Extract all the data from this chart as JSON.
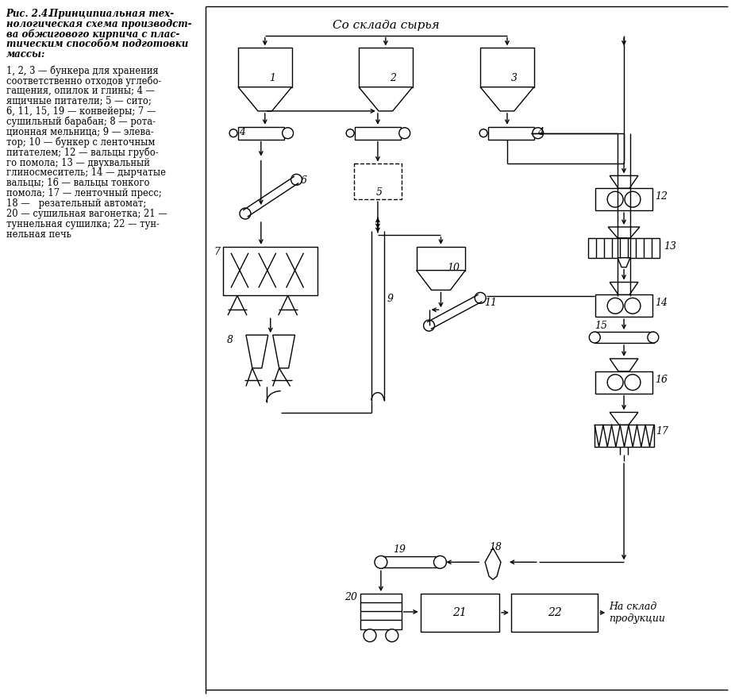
{
  "bg_color": "#ffffff",
  "line_color": "#000000",
  "title_header": "Рис. 2.4.  Принципиальная тех-\nнологическая схема производст-\nва обжигового кирпича с плас-\nтическим способом подготовки\nмассы:",
  "legend_body": "1, 2, 3 — бункера для хранения\nсоответственно отходов углебо-\nгащения, опилок и глины; 4 —\nящичные питатели; 5 — сито;\n6, 11, 15, 19 — конвейеры; 7 —\nсушильный барабан; 8 — рота-\nционная мельница; 9 — элева-\nтор; 10 — бункер с ленточным\nпитателем; 12 — вальцы грубо-\nго помола; 13 — двухвальный\nглиносмеситель; 14 — дырчатые\nвальцы; 16 — вальцы тонкооo\nпомола; 17 — ленточный пресс;\n18 —   резательный автомат;\n20 — сушильная вагонетка; 21 —\nтуннельная сушилка; 22 — тун-\nнельная печь",
  "diagram_title": "Со склада сырья",
  "output_text": "На склад\nпродукции"
}
